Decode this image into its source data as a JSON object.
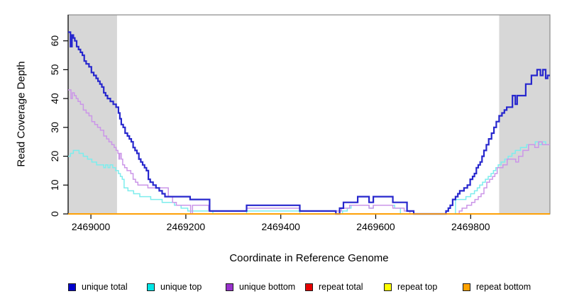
{
  "chart_data": {
    "type": "line",
    "subtype": "step",
    "title": "",
    "xlabel": "Coordinate in Reference Genome",
    "ylabel": "Read Coverage Depth",
    "xlim": [
      2468952,
      2469967
    ],
    "ylim": [
      0,
      69
    ],
    "x_ticks": [
      "2469000",
      "2469200",
      "2469400",
      "2469600",
      "2469800"
    ],
    "x_tick_values": [
      2469000,
      2469200,
      2469400,
      2469600,
      2469800
    ],
    "y_ticks": [
      "0",
      "10",
      "20",
      "30",
      "40",
      "50",
      "60"
    ],
    "y_tick_values": [
      0,
      10,
      20,
      30,
      40,
      50,
      60
    ],
    "grid": false,
    "plot_border_color": "#8a8a8a",
    "axis_color": "#000000",
    "shaded_regions": [
      {
        "from": 2468952,
        "to": 2469055,
        "color": "#d7d7d7"
      },
      {
        "from": 2469860,
        "to": 2469967,
        "color": "#d7d7d7"
      }
    ],
    "legend": {
      "position": "bottom",
      "entries": [
        {
          "label": "unique total",
          "color": "#0000cd"
        },
        {
          "label": "unique top",
          "color": "#00e6e6"
        },
        {
          "label": "unique bottom",
          "color": "#9932cc"
        },
        {
          "label": "repeat total",
          "color": "#e60000"
        },
        {
          "label": "repeat top",
          "color": "#ffff00"
        },
        {
          "label": "repeat bottom",
          "color": "#ffa200"
        }
      ]
    },
    "series": [
      {
        "name": "repeat total",
        "line_color": "#e60000",
        "line_width": 1.4,
        "points": [
          [
            2468952,
            0
          ]
        ]
      },
      {
        "name": "repeat top",
        "line_color": "#ffff00",
        "line_width": 1.4,
        "points": [
          [
            2468952,
            0
          ]
        ]
      },
      {
        "name": "unique top",
        "line_color": "#7deded",
        "line_width": 1.5,
        "points": [
          [
            2468952,
            20
          ],
          [
            2468957,
            21
          ],
          [
            2468963,
            22
          ],
          [
            2468975,
            21
          ],
          [
            2468984,
            20
          ],
          [
            2468993,
            19
          ],
          [
            2469002,
            18
          ],
          [
            2469012,
            17
          ],
          [
            2469027,
            16
          ],
          [
            2469031,
            17
          ],
          [
            2469036,
            16
          ],
          [
            2469040,
            17
          ],
          [
            2469046,
            16
          ],
          [
            2469052,
            15
          ],
          [
            2469058,
            14
          ],
          [
            2469062,
            13
          ],
          [
            2469066,
            12
          ],
          [
            2469070,
            9
          ],
          [
            2469078,
            8
          ],
          [
            2469090,
            7
          ],
          [
            2469103,
            6
          ],
          [
            2469126,
            5
          ],
          [
            2469150,
            4
          ],
          [
            2469176,
            3
          ],
          [
            2469190,
            2
          ],
          [
            2469204,
            1
          ],
          [
            2469257,
            0
          ],
          [
            2469328,
            1
          ],
          [
            2469440,
            0
          ],
          [
            2469530,
            1
          ],
          [
            2469540,
            2
          ],
          [
            2469548,
            3
          ],
          [
            2469586,
            2
          ],
          [
            2469595,
            3
          ],
          [
            2469640,
            2
          ],
          [
            2469652,
            0
          ],
          [
            2469768,
            5
          ],
          [
            2469790,
            6
          ],
          [
            2469800,
            7
          ],
          [
            2469808,
            8
          ],
          [
            2469814,
            9
          ],
          [
            2469819,
            10
          ],
          [
            2469825,
            11
          ],
          [
            2469831,
            12
          ],
          [
            2469837,
            13
          ],
          [
            2469843,
            14
          ],
          [
            2469848,
            15
          ],
          [
            2469853,
            16
          ],
          [
            2469858,
            17
          ],
          [
            2469864,
            18
          ],
          [
            2469872,
            19
          ],
          [
            2469879,
            20
          ],
          [
            2469887,
            21
          ],
          [
            2469894,
            22
          ],
          [
            2469905,
            23
          ],
          [
            2469918,
            24
          ],
          [
            2469936,
            25
          ],
          [
            2469944,
            24
          ],
          [
            2469950,
            25
          ],
          [
            2469958,
            24
          ]
        ]
      },
      {
        "name": "unique bottom",
        "line_color": "#cb96e8",
        "line_width": 1.5,
        "points": [
          [
            2468952,
            43
          ],
          [
            2468958,
            40
          ],
          [
            2468961,
            42
          ],
          [
            2468965,
            41
          ],
          [
            2468969,
            40
          ],
          [
            2468973,
            39
          ],
          [
            2468978,
            38
          ],
          [
            2468984,
            36
          ],
          [
            2468990,
            35
          ],
          [
            2468996,
            34
          ],
          [
            2469002,
            32
          ],
          [
            2469008,
            31
          ],
          [
            2469014,
            30
          ],
          [
            2469020,
            29
          ],
          [
            2469027,
            27
          ],
          [
            2469033,
            26
          ],
          [
            2469038,
            25
          ],
          [
            2469044,
            24
          ],
          [
            2469049,
            23
          ],
          [
            2469053,
            22
          ],
          [
            2469057,
            21
          ],
          [
            2469059,
            19
          ],
          [
            2469061,
            21
          ],
          [
            2469064,
            19
          ],
          [
            2469067,
            17
          ],
          [
            2469071,
            16
          ],
          [
            2469076,
            15
          ],
          [
            2469084,
            14
          ],
          [
            2469089,
            12
          ],
          [
            2469094,
            11
          ],
          [
            2469099,
            10
          ],
          [
            2469120,
            9
          ],
          [
            2469163,
            6
          ],
          [
            2469172,
            4
          ],
          [
            2469180,
            3
          ],
          [
            2469210,
            0
          ],
          [
            2469214,
            3
          ],
          [
            2469248,
            1
          ],
          [
            2469328,
            2
          ],
          [
            2469440,
            1
          ],
          [
            2469520,
            1
          ],
          [
            2469528,
            2
          ],
          [
            2469545,
            3
          ],
          [
            2469586,
            2
          ],
          [
            2469595,
            3
          ],
          [
            2469636,
            2
          ],
          [
            2469660,
            1
          ],
          [
            2469672,
            0
          ],
          [
            2469776,
            1
          ],
          [
            2469782,
            2
          ],
          [
            2469792,
            3
          ],
          [
            2469802,
            4
          ],
          [
            2469809,
            5
          ],
          [
            2469816,
            6
          ],
          [
            2469822,
            7
          ],
          [
            2469828,
            9
          ],
          [
            2469834,
            11
          ],
          [
            2469840,
            12
          ],
          [
            2469846,
            13
          ],
          [
            2469851,
            14
          ],
          [
            2469856,
            16
          ],
          [
            2469868,
            17
          ],
          [
            2469877,
            19
          ],
          [
            2469895,
            18
          ],
          [
            2469901,
            20
          ],
          [
            2469910,
            22
          ],
          [
            2469922,
            24
          ],
          [
            2469935,
            23
          ],
          [
            2469943,
            25
          ],
          [
            2469951,
            24
          ]
        ]
      },
      {
        "name": "unique total",
        "line_color": "#2727cd",
        "line_width": 2.2,
        "points": [
          [
            2468952,
            63
          ],
          [
            2468957,
            58
          ],
          [
            2468960,
            62
          ],
          [
            2468963,
            61
          ],
          [
            2468966,
            60
          ],
          [
            2468970,
            58
          ],
          [
            2468974,
            57
          ],
          [
            2468978,
            56
          ],
          [
            2468982,
            55
          ],
          [
            2468986,
            53
          ],
          [
            2468990,
            52
          ],
          [
            2468996,
            51
          ],
          [
            2469001,
            49
          ],
          [
            2469006,
            48
          ],
          [
            2469011,
            47
          ],
          [
            2469015,
            46
          ],
          [
            2469019,
            45
          ],
          [
            2469023,
            44
          ],
          [
            2469027,
            42
          ],
          [
            2469031,
            41
          ],
          [
            2469035,
            40
          ],
          [
            2469041,
            39
          ],
          [
            2469047,
            38
          ],
          [
            2469053,
            37
          ],
          [
            2469058,
            35
          ],
          [
            2469061,
            33
          ],
          [
            2469064,
            31
          ],
          [
            2469068,
            30
          ],
          [
            2469072,
            28
          ],
          [
            2469077,
            27
          ],
          [
            2469081,
            26
          ],
          [
            2469085,
            25
          ],
          [
            2469089,
            23
          ],
          [
            2469093,
            22
          ],
          [
            2469097,
            21
          ],
          [
            2469101,
            19
          ],
          [
            2469105,
            18
          ],
          [
            2469109,
            17
          ],
          [
            2469113,
            16
          ],
          [
            2469117,
            15
          ],
          [
            2469121,
            12
          ],
          [
            2469125,
            11
          ],
          [
            2469131,
            10
          ],
          [
            2469137,
            9
          ],
          [
            2469144,
            8
          ],
          [
            2469150,
            7
          ],
          [
            2469156,
            6
          ],
          [
            2469209,
            5
          ],
          [
            2469250,
            1
          ],
          [
            2469328,
            3
          ],
          [
            2469440,
            1
          ],
          [
            2469516,
            0
          ],
          [
            2469524,
            2
          ],
          [
            2469532,
            4
          ],
          [
            2469562,
            6
          ],
          [
            2469586,
            4
          ],
          [
            2469595,
            6
          ],
          [
            2469636,
            4
          ],
          [
            2469666,
            1
          ],
          [
            2469680,
            0
          ],
          [
            2469748,
            1
          ],
          [
            2469753,
            2
          ],
          [
            2469757,
            3
          ],
          [
            2469762,
            5
          ],
          [
            2469768,
            6
          ],
          [
            2469773,
            7
          ],
          [
            2469777,
            8
          ],
          [
            2469786,
            9
          ],
          [
            2469793,
            10
          ],
          [
            2469799,
            12
          ],
          [
            2469804,
            13
          ],
          [
            2469808,
            14
          ],
          [
            2469812,
            16
          ],
          [
            2469816,
            17
          ],
          [
            2469820,
            18
          ],
          [
            2469824,
            20
          ],
          [
            2469828,
            22
          ],
          [
            2469833,
            24
          ],
          [
            2469838,
            26
          ],
          [
            2469844,
            28
          ],
          [
            2469849,
            30
          ],
          [
            2469854,
            32
          ],
          [
            2469860,
            34
          ],
          [
            2469866,
            35
          ],
          [
            2469871,
            36
          ],
          [
            2469876,
            37
          ],
          [
            2469888,
            41
          ],
          [
            2469894,
            38
          ],
          [
            2469898,
            41
          ],
          [
            2469916,
            45
          ],
          [
            2469928,
            48
          ],
          [
            2469940,
            50
          ],
          [
            2469947,
            48
          ],
          [
            2469952,
            50
          ],
          [
            2469958,
            47
          ],
          [
            2469962,
            48
          ]
        ]
      },
      {
        "name": "repeat bottom",
        "line_color": "#ff9d00",
        "line_width": 1.8,
        "points": [
          [
            2468952,
            0
          ]
        ]
      }
    ]
  }
}
